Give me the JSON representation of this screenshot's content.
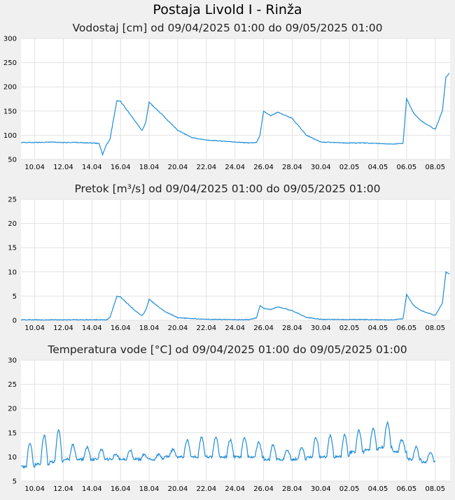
{
  "page_title": "Postaja Livold I - Rinža",
  "chart_data": [
    {
      "type": "line",
      "title": "Vodostaj [cm] od 09/04/2025 01:00 do 09/05/2025 01:00",
      "ylim": [
        50,
        300
      ],
      "yticks": [
        50,
        100,
        150,
        200,
        250,
        300
      ],
      "xlim": [
        "2025-04-09 01:00",
        "2025-05-09 01:00"
      ],
      "xticks": [
        "10.04",
        "12.04",
        "14.04",
        "16.04",
        "18.04",
        "20.04",
        "22.04",
        "24.04",
        "26.04",
        "28.04",
        "30.04",
        "02.05",
        "04.05",
        "06.05",
        "08.05"
      ],
      "grid": true,
      "line_color": "#1f8dd6",
      "series": [
        {
          "x": [
            "2025-04-09",
            "2025-04-10",
            "2025-04-11",
            "2025-04-12",
            "2025-04-13",
            "2025-04-14",
            "2025-04-14 12:00",
            "2025-04-14 18:00",
            "2025-04-15",
            "2025-04-15 06:00",
            "2025-04-15 18:00",
            "2025-04-16",
            "2025-04-17",
            "2025-04-17 12:00",
            "2025-04-17 18:00",
            "2025-04-18",
            "2025-04-19",
            "2025-04-20",
            "2025-04-21",
            "2025-04-22",
            "2025-04-23",
            "2025-04-24",
            "2025-04-25",
            "2025-04-25 12:00",
            "2025-04-25 18:00",
            "2025-04-26",
            "2025-04-26 12:00",
            "2025-04-27",
            "2025-04-28",
            "2025-04-29",
            "2025-04-30",
            "2025-05-01",
            "2025-05-02",
            "2025-05-03",
            "2025-05-04",
            "2025-05-05",
            "2025-05-05 18:00",
            "2025-05-06",
            "2025-05-06 12:00",
            "2025-05-07",
            "2025-05-08",
            "2025-05-08 12:00",
            "2025-05-08 18:00",
            "2025-05-09"
          ],
          "y": [
            85,
            85,
            86,
            85,
            85,
            84,
            83,
            60,
            80,
            90,
            172,
            170,
            130,
            110,
            125,
            168,
            140,
            110,
            95,
            90,
            88,
            86,
            84,
            85,
            100,
            150,
            140,
            148,
            135,
            100,
            86,
            85,
            84,
            84,
            83,
            82,
            83,
            175,
            145,
            130,
            112,
            150,
            220,
            228
          ]
        }
      ]
    },
    {
      "type": "line",
      "title": "Pretok [m³/s] od 09/04/2025 01:00 do 09/05/2025 01:00",
      "ylim": [
        0,
        25
      ],
      "yticks": [
        0,
        5,
        10,
        15,
        20,
        25
      ],
      "xlim": [
        "2025-04-09 01:00",
        "2025-05-09 01:00"
      ],
      "xticks": [
        "10.04",
        "12.04",
        "14.04",
        "16.04",
        "18.04",
        "20.04",
        "22.04",
        "24.04",
        "26.04",
        "28.04",
        "30.04",
        "02.05",
        "04.05",
        "06.05",
        "08.05"
      ],
      "grid": true,
      "line_color": "#1f8dd6",
      "series": [
        {
          "x": [
            "2025-04-09",
            "2025-04-12",
            "2025-04-15",
            "2025-04-15 06:00",
            "2025-04-15 18:00",
            "2025-04-16",
            "2025-04-17",
            "2025-04-17 12:00",
            "2025-04-17 18:00",
            "2025-04-18",
            "2025-04-19",
            "2025-04-20",
            "2025-04-22",
            "2025-04-25",
            "2025-04-25 12:00",
            "2025-04-25 18:00",
            "2025-04-26",
            "2025-04-26 12:00",
            "2025-04-27",
            "2025-04-28",
            "2025-04-29",
            "2025-04-30",
            "2025-05-05",
            "2025-05-05 18:00",
            "2025-05-06",
            "2025-05-06 12:00",
            "2025-05-07",
            "2025-05-08",
            "2025-05-08 12:00",
            "2025-05-08 18:00",
            "2025-05-09"
          ],
          "y": [
            0.1,
            0.1,
            0.1,
            0.5,
            5.0,
            4.8,
            2.0,
            1.0,
            2.0,
            4.3,
            2.0,
            0.5,
            0.2,
            0.1,
            0.5,
            3.0,
            2.5,
            2.2,
            2.8,
            2.0,
            0.6,
            0.2,
            0.1,
            0.3,
            5.3,
            3.0,
            2.0,
            1.0,
            3.5,
            10.0,
            9.5
          ]
        }
      ]
    },
    {
      "type": "line",
      "title": "Temperatura vode [°C] od 09/04/2025 01:00 do 09/05/2025 01:00",
      "ylim": [
        5,
        30
      ],
      "yticks": [
        5,
        10,
        15,
        20,
        25,
        30
      ],
      "xlim": [
        "2025-04-09 01:00",
        "2025-05-09 01:00"
      ],
      "xticks": [
        "10.04",
        "12.04",
        "14.04",
        "16.04",
        "18.04",
        "20.04",
        "22.04",
        "24.04",
        "26.04",
        "28.04",
        "30.04",
        "02.05",
        "04.05",
        "06.05",
        "08.05"
      ],
      "grid": true,
      "line_color": "#1f8dd6",
      "daily_max": [
        11.5,
        13,
        14.5,
        15.5,
        12.5,
        12,
        11.5,
        10.5,
        11.5,
        10.5,
        10.5,
        11.5,
        13.5,
        14,
        14,
        13.5,
        14,
        13,
        12.5,
        11.5,
        12,
        14,
        14.5,
        14.5,
        15.5,
        16,
        17,
        13.5,
        12,
        11
      ],
      "daily_min": [
        7.2,
        8,
        8.5,
        9,
        9.5,
        9.5,
        9.5,
        9.5,
        9.5,
        9.5,
        9.5,
        10,
        10,
        10,
        10,
        10,
        10,
        10,
        9.5,
        9.5,
        9.5,
        10,
        10,
        10,
        11,
        11.5,
        12,
        11,
        9.5,
        9
      ]
    }
  ]
}
